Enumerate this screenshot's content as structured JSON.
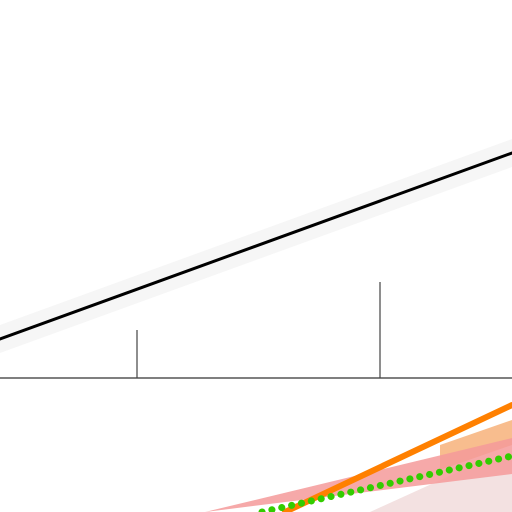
{
  "chart_data": {
    "type": "line",
    "title": "",
    "xlabel": "",
    "ylabel": "",
    "xlim": [
      0,
      512
    ],
    "ylim": [
      -512,
      0
    ],
    "grid": false,
    "legend": "none",
    "baseline": 378,
    "series": [
      {
        "style": "solid",
        "color": "#000000",
        "width": 3,
        "x": [
          0,
          512
        ],
        "y": [
          -339,
          -153
        ],
        "band": {
          "color": "#f6f6f6",
          "half_width": 14
        }
      },
      {
        "style": "solid",
        "color": "#ff8000",
        "width": 6,
        "x": [
          285,
          512
        ],
        "y": [
          -512,
          -405
        ],
        "band": {
          "color": "#f7b27a",
          "upper": [
            [
              440,
              -445
            ],
            [
              512,
              -420
            ]
          ],
          "lower": [
            [
              440,
              -470
            ],
            [
              512,
              -445
            ]
          ]
        }
      },
      {
        "style": "dotted",
        "color": "#33cc00",
        "width": 7,
        "x": [
          262,
          512
        ],
        "y": [
          -512,
          -456
        ],
        "band": {
          "color": "#f59a9a",
          "upper": [
            [
              205,
              -512
            ],
            [
              512,
              -438
            ]
          ],
          "lower": [
            [
              205,
              -512
            ],
            [
              512,
              -474
            ]
          ]
        }
      }
    ],
    "ticks": [
      {
        "x": 137,
        "y_top": -330
      },
      {
        "x": 380,
        "y_top": -282
      }
    ],
    "shade": {
      "color": "#f3e1e1",
      "points": [
        [
          480,
          -462
        ],
        [
          512,
          -458
        ],
        [
          512,
          -512
        ],
        [
          370,
          -512
        ]
      ]
    }
  }
}
